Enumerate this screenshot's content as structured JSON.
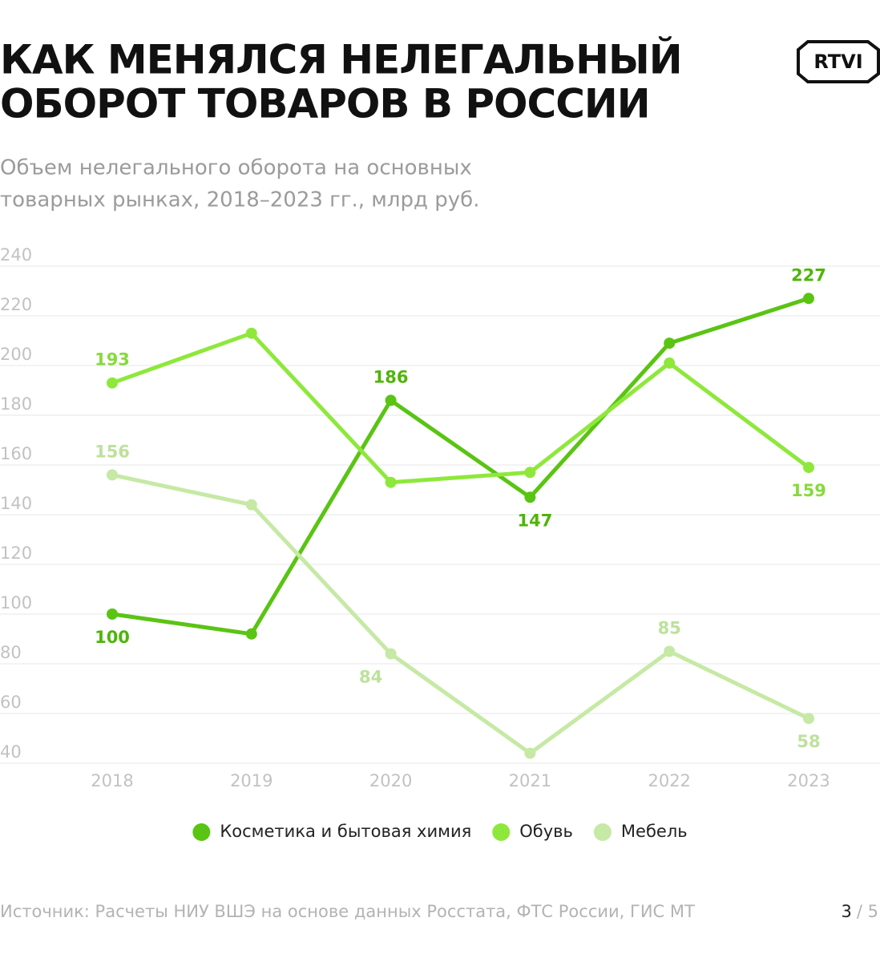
{
  "chart_data": {
    "type": "line",
    "title": [
      "КАК МЕНЯЛСЯ НЕЛЕГАЛЬНЫЙ",
      "ОБОРОТ ТОВАРОВ В РОССИИ"
    ],
    "subtitle": [
      "Объем нелегального оборота на основных",
      "товарных рынках, 2018–2023 гг., млрд руб."
    ],
    "categories": [
      "2018",
      "2019",
      "2020",
      "2021",
      "2022",
      "2023"
    ],
    "series": [
      {
        "name": "Косметика и бытовая химия",
        "color": "#5ac413",
        "label_color": "#4fb50a",
        "values": [
          100,
          92,
          186,
          147,
          209,
          227
        ],
        "value_labels": [
          "100",
          null,
          "186",
          "147",
          null,
          "227"
        ]
      },
      {
        "name": "Обувь",
        "color": "#8ee83c",
        "label_color": "#86da3c",
        "values": [
          193,
          213,
          153,
          157,
          201,
          159
        ],
        "value_labels": [
          "193",
          null,
          null,
          null,
          null,
          "159"
        ]
      },
      {
        "name": "Мебель",
        "color": "#c6e9a5",
        "label_color": "#bde19c",
        "values": [
          156,
          144,
          84,
          44,
          85,
          58
        ],
        "value_labels": [
          "156",
          null,
          "84",
          null,
          "85",
          "58"
        ]
      }
    ],
    "ylim": [
      40,
      240
    ],
    "yticks": [
      40,
      60,
      80,
      100,
      120,
      140,
      160,
      180,
      200,
      220,
      240
    ],
    "grid": true,
    "legend": "bottom"
  },
  "source": "Источник: Расчеты НИУ ВШЭ на основе данных Росстата, ФТС России, ГИС МТ",
  "page": {
    "current": "3",
    "total": "/ 5"
  },
  "logo": "RTVI"
}
